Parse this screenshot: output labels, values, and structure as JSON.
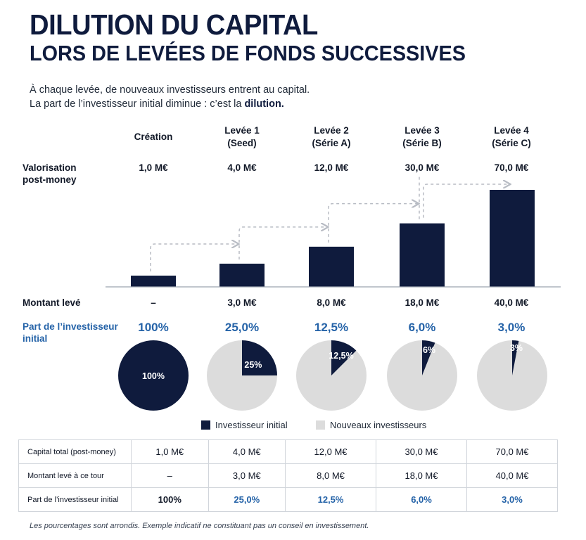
{
  "title": {
    "line1": "DILUTION DU CAPITAL",
    "line2": "LORS DE LEVÉES DE FONDS SUCCESSIVES"
  },
  "intro": {
    "line1": "À chaque levée, de nouveaux investisseurs entrent au capital.",
    "line2_prefix": "La part de l’investisseur initial diminue : c’est la ",
    "line2_bold": "dilution."
  },
  "columns": [
    {
      "line1": "Création",
      "line2": ""
    },
    {
      "line1": "Levée 1",
      "line2": "(Seed)"
    },
    {
      "line1": "Levée 2",
      "line2": "(Série A)"
    },
    {
      "line1": "Levée 3",
      "line2": "(Série B)"
    },
    {
      "line1": "Levée 4",
      "line2": "(Série C)"
    }
  ],
  "rows": {
    "valuation_label_1": "Valorisation",
    "valuation_label_2": "post-money",
    "valuations": [
      "1,0 M€",
      "4,0 M€",
      "12,0 M€",
      "30,0 M€",
      "70,0 M€"
    ],
    "raised_label": "Montant levé",
    "raised": [
      "–",
      "3,0 M€",
      "8,0 M€",
      "18,0 M€",
      "40,0 M€"
    ],
    "share_label_1": "Part de l’investisseur",
    "share_label_2": "initial",
    "shares": [
      "100%",
      "25,0%",
      "12,5%",
      "6,0%",
      "3,0%"
    ],
    "pie_labels": [
      "100%",
      "25%",
      "12,5%",
      "6%",
      "3%"
    ]
  },
  "legend": {
    "initial": "Investisseur initial",
    "new": "Nouveaux investisseurs"
  },
  "colors": {
    "navy": "#0f1b3d",
    "light_gray": "#dcdcdc",
    "accent_blue": "#2563a8",
    "arrow_gray": "#b8bcc4"
  },
  "table": {
    "rows": [
      {
        "label": "Capital total (post-money)",
        "values": [
          "1,0 M€",
          "4,0 M€",
          "12,0 M€",
          "30,0 M€",
          "70,0 M€"
        ],
        "style": [
          "",
          "",
          "",
          "",
          ""
        ]
      },
      {
        "label": "Montant levé à ce tour",
        "values": [
          "–",
          "3,0 M€",
          "8,0 M€",
          "18,0 M€",
          "40,0 M€"
        ],
        "style": [
          "",
          "",
          "",
          "",
          ""
        ]
      },
      {
        "label": "Part de l’investisseur initial",
        "values": [
          "100%",
          "25,0%",
          "12,5%",
          "6,0%",
          "3,0%"
        ],
        "style": [
          "bold",
          "blue",
          "blue",
          "blue",
          "blue"
        ]
      }
    ]
  },
  "footnote": "Les pourcentages sont arrondis. Exemple indicatif ne constituant pas un conseil en investissement.",
  "chart_data": [
    {
      "type": "bar",
      "categories": [
        "Création",
        "Levée 1 (Seed)",
        "Levée 2 (Série A)",
        "Levée 3 (Série B)",
        "Levée 4 (Série C)"
      ],
      "values": [
        1.0,
        4.0,
        12.0,
        30.0,
        70.0
      ],
      "ylabel": "Valorisation post-money",
      "title": "",
      "xlabel": "",
      "grid": false,
      "value_labels": [
        "1,0 M€",
        "4,0 M€",
        "12,0 M€",
        "30,0 M€",
        "70,0 M€"
      ]
    },
    {
      "type": "pie",
      "categories": [
        "Création",
        "Levée 1 (Seed)",
        "Levée 2 (Série A)",
        "Levée 3 (Série B)",
        "Levée 4 (Série C)"
      ],
      "series": [
        {
          "name": "Investisseur initial",
          "values": [
            100,
            25,
            12.5,
            6,
            3
          ]
        },
        {
          "name": "Nouveaux investisseurs",
          "values": [
            0,
            75,
            87.5,
            94,
            97
          ]
        }
      ]
    }
  ]
}
